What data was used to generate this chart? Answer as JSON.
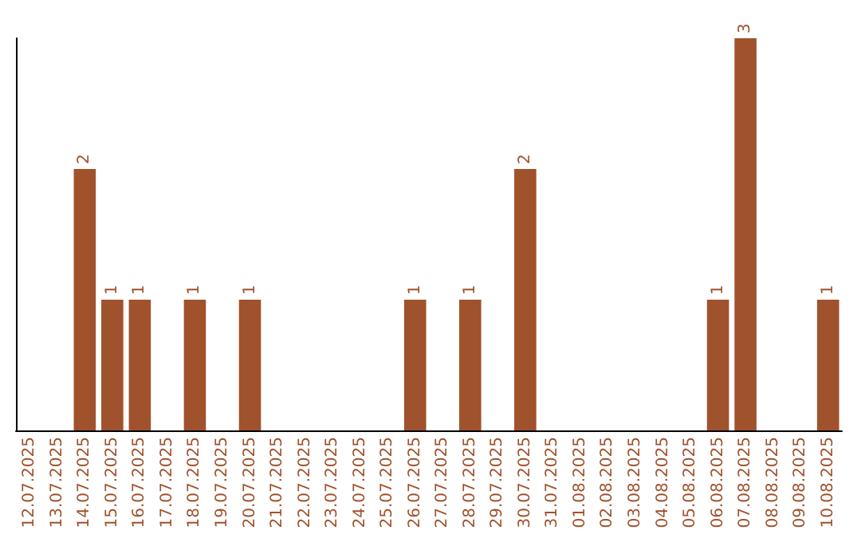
{
  "chart_data": {
    "type": "bar",
    "categories": [
      "12.07.2025",
      "13.07.2025",
      "14.07.2025",
      "15.07.2025",
      "16.07.2025",
      "17.07.2025",
      "18.07.2025",
      "19.07.2025",
      "20.07.2025",
      "21.07.2025",
      "22.07.2025",
      "23.07.2025",
      "24.07.2025",
      "25.07.2025",
      "26.07.2025",
      "27.07.2025",
      "28.07.2025",
      "29.07.2025",
      "30.07.2025",
      "31.07.2025",
      "01.08.2025",
      "02.08.2025",
      "03.08.2025",
      "04.08.2025",
      "05.08.2025",
      "06.08.2025",
      "07.08.2025",
      "08.08.2025",
      "09.08.2025",
      "10.08.2025"
    ],
    "values": [
      0,
      0,
      2,
      1,
      1,
      0,
      1,
      0,
      1,
      0,
      0,
      0,
      0,
      0,
      1,
      0,
      1,
      0,
      2,
      0,
      0,
      0,
      0,
      0,
      0,
      1,
      3,
      0,
      0,
      1
    ],
    "value_labels": [
      null,
      null,
      "2",
      "1",
      "1",
      null,
      "1",
      null,
      "1",
      null,
      null,
      null,
      null,
      null,
      "1",
      null,
      "1",
      null,
      "2",
      null,
      null,
      null,
      null,
      null,
      null,
      "1",
      "3",
      null,
      null,
      "1"
    ],
    "color": "#a0522d",
    "tick_labels": "x"
  }
}
